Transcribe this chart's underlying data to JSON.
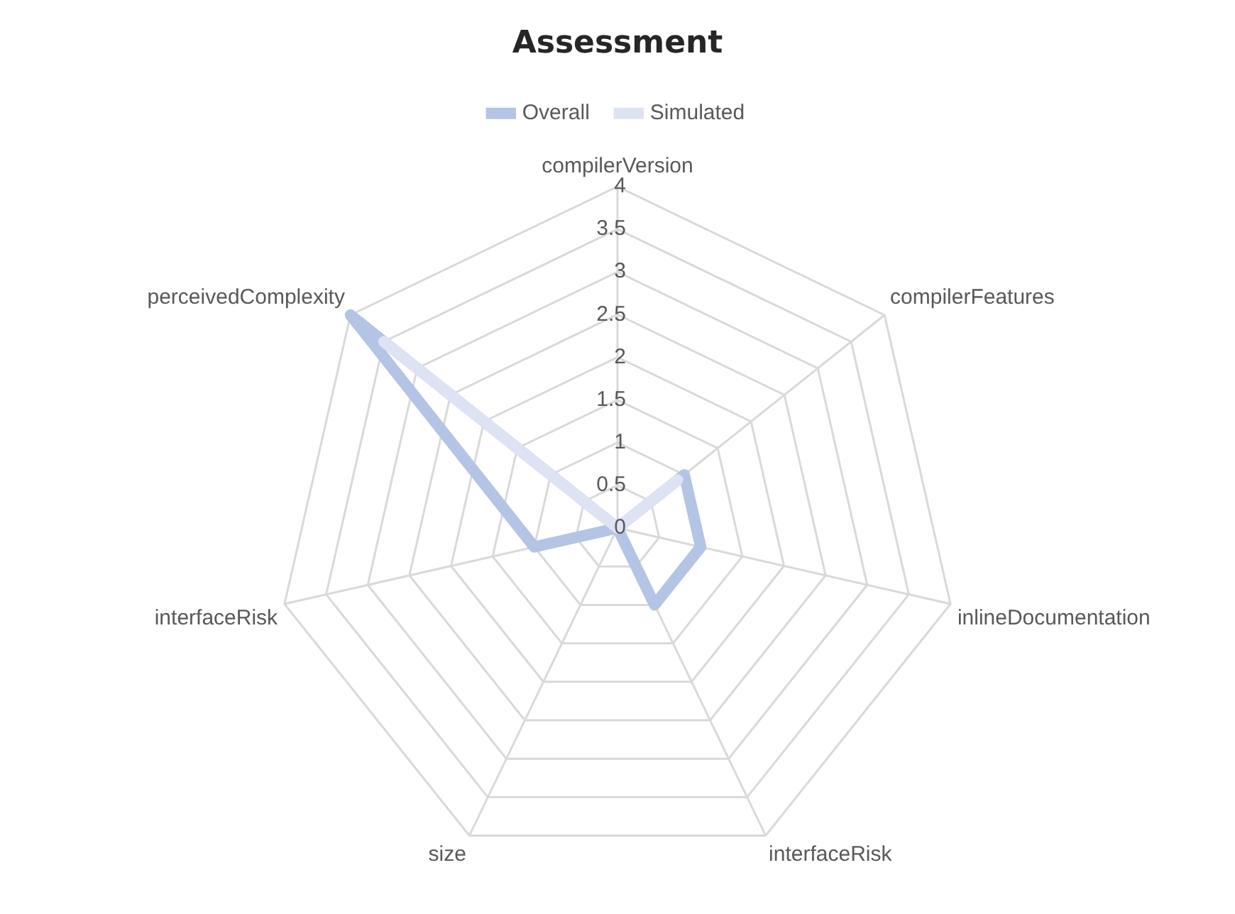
{
  "chart_data": {
    "type": "radar",
    "title": "Assessment",
    "categories": [
      "compilerVersion",
      "compilerFeatures",
      "inlineDocumentation",
      "interfaceRisk",
      "size",
      "interfaceRisk",
      "perceivedComplexity"
    ],
    "series": [
      {
        "name": "Overall",
        "color": "#b4c4e4",
        "values": [
          0,
          1,
          1,
          1,
          0,
          1,
          4
        ]
      },
      {
        "name": "Simulated",
        "color": "#dde3f3",
        "values": [
          0,
          0.9,
          0,
          0,
          0,
          0,
          3.5
        ]
      }
    ],
    "ylim": [
      0,
      4
    ],
    "yticks": [
      0,
      0.5,
      1,
      1.5,
      2,
      2.5,
      3,
      3.5,
      4
    ],
    "grid": true,
    "legend": "top",
    "marker": "none"
  }
}
